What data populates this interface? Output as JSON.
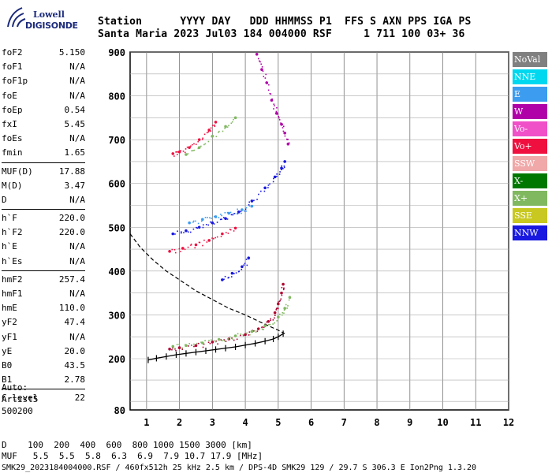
{
  "logo": {
    "line1": "Lowell",
    "line2": "DIGISONDE"
  },
  "header": {
    "row1": "Station      YYYY DAY   DDD HHMMSS P1  FFS S AXN PPS IGA PS",
    "row2": "Santa Maria 2023 Jul03 184 004000 RSF     1 711 100 03+ 36"
  },
  "params": {
    "group1": [
      {
        "k": "foF2",
        "v": "5.150"
      },
      {
        "k": "foF1",
        "v": "N/A"
      },
      {
        "k": "foF1p",
        "v": "N/A"
      },
      {
        "k": "foE",
        "v": "N/A"
      },
      {
        "k": "foEp",
        "v": "0.54"
      },
      {
        "k": "fxI",
        "v": "5.45"
      },
      {
        "k": "foEs",
        "v": "N/A"
      },
      {
        "k": "fmin",
        "v": "1.65"
      }
    ],
    "group2": [
      {
        "k": "MUF(D)",
        "v": "17.88"
      },
      {
        "k": "M(D)",
        "v": "3.47"
      },
      {
        "k": "D",
        "v": "N/A"
      }
    ],
    "group3": [
      {
        "k": "h`F",
        "v": "220.0"
      },
      {
        "k": "h`F2",
        "v": "220.0"
      },
      {
        "k": "h`E",
        "v": "N/A"
      },
      {
        "k": "h`Es",
        "v": "N/A"
      }
    ],
    "group4": [
      {
        "k": "hmF2",
        "v": "257.4"
      },
      {
        "k": "hmF1",
        "v": "N/A"
      },
      {
        "k": "hmE",
        "v": "110.0"
      },
      {
        "k": "yF2",
        "v": "47.4"
      },
      {
        "k": "yF1",
        "v": "N/A"
      },
      {
        "k": "yE",
        "v": "20.0"
      },
      {
        "k": "B0",
        "v": "43.5"
      },
      {
        "k": "B1",
        "v": "2.78"
      }
    ],
    "group5": [
      {
        "k": "C-level",
        "v": "22"
      }
    ]
  },
  "auto": [
    "Auto:",
    "Artist5",
    "500200"
  ],
  "footer": {
    "line1": "D    100  200  400  600  800 1000 1500 3000 [km]",
    "line2": "MUF   5.5  5.5  5.8  6.3  6.9  7.9 10.7 17.9 [MHz]",
    "line3": "SMK29_2023184004000.RSF / 460fx512h 25 kHz 2.5 km / DPS-4D SMK29 129 / 29.7 S 306.3 E Ion2Png 1.3.20"
  },
  "legend": [
    {
      "label": "NoVal",
      "color": "#808080"
    },
    {
      "label": "NNE",
      "color": "#00d8f0"
    },
    {
      "label": "E",
      "color": "#3c9cf0"
    },
    {
      "label": "W",
      "color": "#b000a8"
    },
    {
      "label": "Vo-",
      "color": "#f050c8"
    },
    {
      "label": "Vo+",
      "color": "#f01040"
    },
    {
      "label": "SSW",
      "color": "#f0a8a8"
    },
    {
      "label": "X-",
      "color": "#007800"
    },
    {
      "label": "X+",
      "color": "#80b860"
    },
    {
      "label": "SSE",
      "color": "#c8c820"
    },
    {
      "label": "NNW",
      "color": "#1818e0"
    }
  ],
  "chart_data": {
    "type": "scatter",
    "title": "",
    "xlabel": "",
    "ylabel": "",
    "xlim": [
      0.5,
      12
    ],
    "ylim": [
      80,
      900
    ],
    "xticks": [
      1,
      2,
      3,
      4,
      5,
      6,
      7,
      8,
      9,
      10,
      11,
      12
    ],
    "yticks": [
      80,
      200,
      300,
      400,
      500,
      600,
      700,
      800,
      900
    ],
    "grid": true,
    "series": [
      {
        "name": "Vo+",
        "color": "#b00030",
        "x": [
          1.7,
          2.0,
          2.5,
          3.0,
          3.5,
          4.0,
          4.4,
          4.7,
          4.9,
          5.0,
          5.1,
          5.15
        ],
        "y": [
          222,
          225,
          230,
          238,
          245,
          255,
          268,
          285,
          305,
          325,
          350,
          370
        ]
      },
      {
        "name": "X+",
        "color": "#80b860",
        "x": [
          1.8,
          2.2,
          2.7,
          3.2,
          3.7,
          4.2,
          4.6,
          5.0,
          5.2,
          5.35
        ],
        "y": [
          228,
          230,
          236,
          244,
          252,
          262,
          275,
          295,
          315,
          340
        ]
      },
      {
        "name": "NNW",
        "color": "#1818e0",
        "x": [
          1.8,
          2.2,
          2.6,
          3.0,
          3.4,
          3.8,
          4.2,
          4.6,
          4.9,
          5.1,
          5.2
        ],
        "y": [
          485,
          492,
          500,
          510,
          520,
          535,
          560,
          590,
          615,
          635,
          650
        ]
      },
      {
        "name": "E",
        "color": "#3c9cf0",
        "x": [
          2.3,
          2.7,
          3.1,
          3.5,
          3.9,
          4.2
        ],
        "y": [
          510,
          518,
          524,
          532,
          540,
          548
        ]
      },
      {
        "name": "Vo+ 2nd",
        "color": "#f01040",
        "x": [
          1.8,
          2.0,
          2.3,
          2.6,
          2.9,
          3.1
        ],
        "y": [
          668,
          672,
          682,
          700,
          722,
          740
        ]
      },
      {
        "name": "X+ 2nd",
        "color": "#80b860",
        "x": [
          2.2,
          2.6,
          3.0,
          3.4,
          3.7
        ],
        "y": [
          666,
          682,
          708,
          730,
          750
        ]
      },
      {
        "name": "Vo+ low",
        "color": "#f01040",
        "x": [
          1.7,
          2.1,
          2.5,
          2.9,
          3.3,
          3.7
        ],
        "y": [
          445,
          452,
          460,
          470,
          485,
          498
        ]
      },
      {
        "name": "W",
        "color": "#b000a8",
        "x": [
          4.35,
          4.5,
          4.65,
          4.8,
          4.95,
          5.1,
          5.2,
          5.3
        ],
        "y": [
          895,
          860,
          830,
          790,
          760,
          735,
          715,
          690
        ]
      },
      {
        "name": "NNW 3rd",
        "color": "#1818e0",
        "x": [
          3.3,
          3.6,
          3.9,
          4.1
        ],
        "y": [
          380,
          395,
          410,
          430
        ]
      }
    ],
    "profile": {
      "name": "profile",
      "x": [
        1.05,
        1.3,
        1.6,
        1.9,
        2.2,
        2.5,
        2.8,
        3.1,
        3.4,
        3.7,
        4.0,
        4.3,
        4.6,
        4.85,
        5.0,
        5.15
      ],
      "y": [
        197,
        201,
        205,
        209,
        212,
        215,
        218,
        221,
        224,
        227,
        231,
        235,
        240,
        245,
        250,
        257
      ]
    },
    "muf_curve": {
      "name": "MUF",
      "x": [
        0.5,
        0.8,
        1.2,
        1.6,
        2.0,
        2.5,
        3.0,
        3.5,
        4.0,
        4.5,
        5.0,
        5.2
      ],
      "y": [
        485,
        455,
        425,
        400,
        380,
        355,
        335,
        315,
        300,
        282,
        265,
        257
      ]
    }
  }
}
